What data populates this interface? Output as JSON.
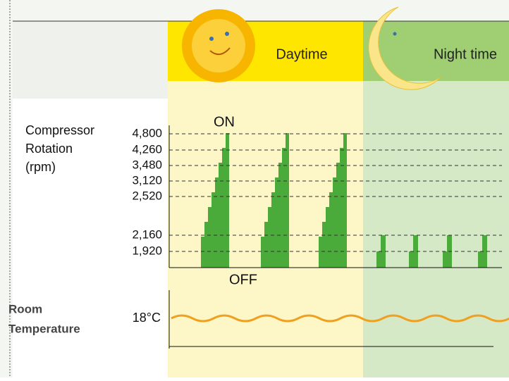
{
  "header": {
    "day": "Daytime",
    "night": "Night time"
  },
  "rotation": {
    "title": [
      "Compressor",
      "Rotation",
      "(rpm)"
    ],
    "ticks": [
      "4,800",
      "4,260",
      "3,480",
      "3,120",
      "2,520",
      "2,160",
      "1,920"
    ],
    "on": "ON",
    "off": "OFF"
  },
  "temperature": {
    "title": [
      "Room",
      "Temperature"
    ],
    "tick": "18°C"
  }
}
